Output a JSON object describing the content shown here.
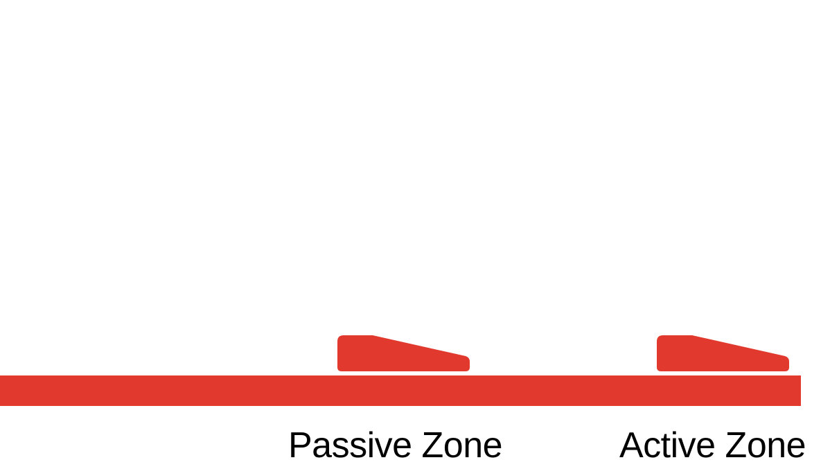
{
  "colors": {
    "background": "#ffffff",
    "accent": "#E2392E",
    "text": "#000000"
  },
  "labels": {
    "passive_zone": "Passive Zone",
    "active_zone": "Active Zone"
  }
}
